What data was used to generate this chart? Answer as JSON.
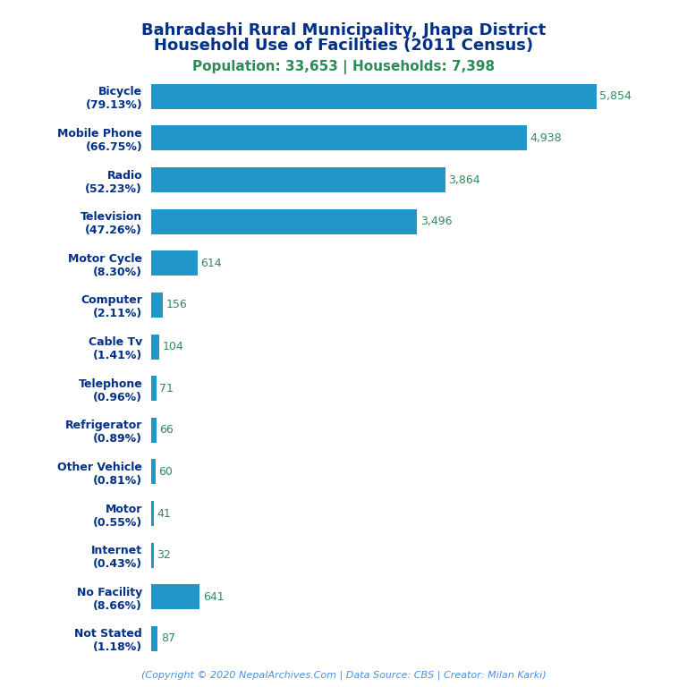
{
  "title_line1": "Bahradashi Rural Municipality, Jhapa District",
  "title_line2": "Household Use of Facilities (2011 Census)",
  "subtitle": "Population: 33,653 | Households: 7,398",
  "footer": "(Copyright © 2020 NepalArchives.Com | Data Source: CBS | Creator: Milan Karki)",
  "categories": [
    "Bicycle\n(79.13%)",
    "Mobile Phone\n(66.75%)",
    "Radio\n(52.23%)",
    "Television\n(47.26%)",
    "Motor Cycle\n(8.30%)",
    "Computer\n(2.11%)",
    "Cable Tv\n(1.41%)",
    "Telephone\n(0.96%)",
    "Refrigerator\n(0.89%)",
    "Other Vehicle\n(0.81%)",
    "Motor\n(0.55%)",
    "Internet\n(0.43%)",
    "No Facility\n(8.66%)",
    "Not Stated\n(1.18%)"
  ],
  "values": [
    5854,
    4938,
    3864,
    3496,
    614,
    156,
    104,
    71,
    66,
    60,
    41,
    32,
    641,
    87
  ],
  "bar_color": "#2196C8",
  "label_color": "#2E8B57",
  "title_color": "#003087",
  "subtitle_color": "#2E8B57",
  "footer_color": "#4A90D9",
  "background_color": "#ffffff",
  "xlim": [
    0,
    6500
  ]
}
